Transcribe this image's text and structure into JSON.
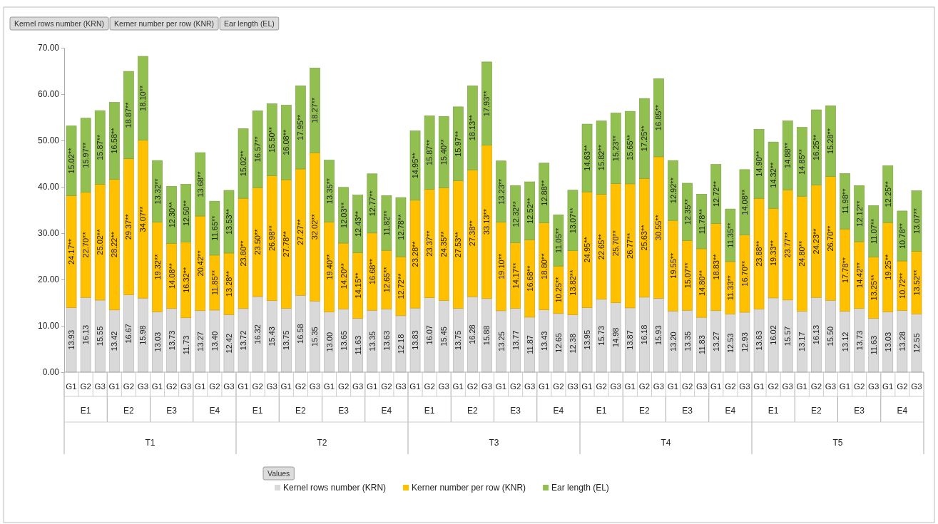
{
  "chart_data": {
    "type": "bar",
    "stacked": true,
    "legend": "bottom",
    "legend_title": "Values",
    "categories": [
      "G1",
      "G2",
      "G3",
      "G1",
      "G2",
      "G3",
      "G1",
      "G2",
      "G3",
      "G1",
      "G2",
      "G3",
      "G1",
      "G2",
      "G3",
      "G1",
      "G2",
      "G3",
      "G1",
      "G2",
      "G3",
      "G1",
      "G2",
      "G3",
      "G1",
      "G2",
      "G3",
      "G1",
      "G2",
      "G3",
      "G1",
      "G2",
      "G3",
      "G1",
      "G2",
      "G3",
      "G1",
      "G2",
      "G3",
      "G1",
      "G2",
      "G3",
      "G1",
      "G2",
      "G3",
      "G1",
      "G2",
      "G3",
      "G1",
      "G2",
      "G3",
      "G1",
      "G2",
      "G3",
      "G1",
      "G2",
      "G3",
      "G1",
      "G2",
      "G3"
    ],
    "ylim": [
      0,
      70
    ],
    "yticks": [
      {
        "value": 0,
        "label": "0.00"
      },
      {
        "value": 10,
        "label": "10.00"
      },
      {
        "value": 20,
        "label": "20.00"
      },
      {
        "value": 30,
        "label": "30.00"
      },
      {
        "value": 40,
        "label": "40.00"
      },
      {
        "value": 50,
        "label": "50.00"
      },
      {
        "value": 60,
        "label": "60.00"
      },
      {
        "value": 70,
        "label": "70.00"
      }
    ],
    "annotations": [
      "Kernel rows number (KRN)",
      "Kerner number per row (KNR)",
      "Ear length (EL)",
      "E1",
      "E2",
      "E3",
      "E4",
      "E1",
      "E2",
      "E3",
      "E4",
      "E1",
      "E2",
      "E3",
      "E4",
      "E1",
      "E2",
      "E3",
      "E4",
      "E1",
      "E2",
      "E3",
      "E4",
      "T1",
      "T2",
      "T3",
      "T4",
      "T5"
    ],
    "series": [
      {
        "name": "Kernel rows number (KRN)",
        "color": "#d9d9d9",
        "values": [
          13.93,
          16.13,
          15.55,
          13.42,
          16.67,
          15.98,
          13.03,
          13.73,
          11.73,
          13.27,
          13.4,
          12.42,
          13.72,
          16.32,
          15.43,
          13.75,
          16.58,
          15.35,
          13.0,
          13.65,
          11.63,
          13.35,
          13.63,
          12.18,
          13.83,
          16.07,
          15.45,
          13.75,
          16.28,
          15.88,
          13.25,
          13.77,
          11.87,
          13.43,
          12.65,
          12.38,
          13.95,
          15.73,
          14.98,
          13.87,
          16.18,
          15.93,
          13.2,
          13.35,
          11.83,
          13.27,
          12.53,
          12.93,
          13.63,
          16.02,
          15.57,
          13.17,
          16.13,
          15.5,
          13.12,
          13.73,
          11.63,
          13.03,
          13.28,
          12.55
        ],
        "value_labels": [
          "13.93",
          "16.13",
          "15.55",
          "13.42",
          "16.67",
          "15.98",
          "13.03",
          "13.73",
          "11.73",
          "13.27",
          "13.40",
          "12.42",
          "13.72",
          "16.32",
          "15.43",
          "13.75",
          "16.58",
          "15.35",
          "13.00",
          "13.65",
          "11.63",
          "13.35",
          "13.63",
          "12.18",
          "13.83",
          "16.07",
          "15.45",
          "13.75",
          "16.28",
          "15.88",
          "13.25",
          "13.77",
          "11.87",
          "13.43",
          "12.65",
          "12.38",
          "13.95",
          "15.73",
          "14.98",
          "13.87",
          "16.18",
          "15.93",
          "13.20",
          "13.35",
          "11.83",
          "13.27",
          "12.53",
          "12.93",
          "13.63",
          "16.02",
          "15.57",
          "13.17",
          "16.13",
          "15.50",
          "13.12",
          "13.73",
          "11.63",
          "13.03",
          "13.28",
          "12.55"
        ]
      },
      {
        "name": "Kerner number per row (KNR)",
        "color": "#ffc000",
        "values": [
          24.17,
          22.7,
          25.02,
          28.22,
          29.37,
          34.07,
          19.32,
          14.08,
          16.32,
          20.42,
          11.85,
          13.28,
          23.8,
          23.5,
          26.98,
          27.78,
          27.27,
          32.02,
          19.4,
          14.2,
          14.15,
          16.68,
          12.65,
          12.72,
          23.28,
          23.37,
          24.35,
          27.53,
          27.38,
          33.13,
          19.1,
          14.17,
          16.68,
          18.8,
          10.25,
          13.82,
          24.95,
          22.65,
          25.7,
          26.77,
          25.63,
          30.55,
          19.55,
          15.07,
          14.8,
          18.83,
          11.33,
          16.7,
          23.88,
          19.33,
          23.77,
          24.8,
          24.23,
          26.7,
          17.78,
          14.42,
          13.25,
          19.25,
          10.72,
          13.52
        ],
        "value_labels": [
          "24.17**",
          "22.70**",
          "25.02**",
          "28.22**",
          "29.37**",
          "34.07**",
          "19.32**",
          "14.08**",
          "16.32**",
          "20.42**",
          "11.85**",
          "13.28**",
          "23.80**",
          "23.50**",
          "26.98**",
          "27.78**",
          "27.27**",
          "32.02**",
          "19.40**",
          "14.20**",
          "14.15**",
          "16.68**",
          "12.65**",
          "12.72**",
          "23.28**",
          "23.37**",
          "24.35**",
          "27.53**",
          "27.38**",
          "33.13**",
          "19.10**",
          "14.17**",
          "16.68**",
          "18.80**",
          "10.25**",
          "13.82**",
          "24.95**",
          "22.65**",
          "25.70**",
          "26.77**",
          "25.63**",
          "30.55**",
          "19.55**",
          "15.07**",
          "14.80**",
          "18.83**",
          "11.33**",
          "16.70**",
          "23.88**",
          "19.33**",
          "23.77**",
          "24.80**",
          "24.23**",
          "26.70**",
          "17.78**",
          "14.42**",
          "13.25**",
          "19.25**",
          "10.72**",
          "13.52**"
        ]
      },
      {
        "name": "Ear length (EL)",
        "color": "#92c050",
        "values": [
          15.02,
          15.97,
          15.87,
          16.58,
          18.87,
          18.1,
          13.32,
          12.3,
          12.5,
          13.68,
          11.65,
          13.53,
          15.02,
          16.57,
          15.5,
          16.08,
          17.95,
          18.27,
          13.35,
          12.03,
          12.43,
          12.77,
          11.82,
          12.78,
          14.95,
          15.87,
          15.4,
          15.97,
          18.13,
          17.93,
          13.23,
          12.32,
          12.52,
          12.88,
          11.05,
          13.07,
          14.63,
          15.82,
          15.23,
          15.65,
          17.25,
          16.85,
          12.92,
          12.35,
          11.78,
          12.72,
          11.35,
          14.08,
          14.9,
          14.32,
          14.88,
          14.85,
          16.25,
          15.28,
          11.98,
          12.12,
          11.07,
          12.25,
          10.78,
          13.07
        ],
        "value_labels": [
          "15.02**",
          "15.97**",
          "15.87**",
          "16.58**",
          "18.87**",
          "18.10**",
          "13.32**",
          "12.30**",
          "12.50**",
          "13.68**",
          "11.65**",
          "13.53**",
          "15.02**",
          "16.57**",
          "15.50**",
          "16.08**",
          "17.95**",
          "18.27**",
          "13.35**",
          "12.03**",
          "12.43**",
          "12.77**",
          "11.82**",
          "12.78**",
          "14.95**",
          "15.87**",
          "15.40**",
          "15.97**",
          "18.13**",
          "17.93**",
          "13.23**",
          "12.32**",
          "12.52**",
          "12.88**",
          "11.05**",
          "13.07**",
          "14.63**",
          "15.82**",
          "15.23**",
          "15.65**",
          "17.25**",
          "16.85**",
          "12.92**",
          "12.35**",
          "11.78**",
          "12.72**",
          "11.35**",
          "14.08**",
          "14.90**",
          "14.32**",
          "14.88**",
          "14.85**",
          "16.25**",
          "15.28**",
          "11.98**",
          "12.12**",
          "11.07**",
          "12.25**",
          "10.78**",
          "13.07**"
        ]
      }
    ]
  }
}
